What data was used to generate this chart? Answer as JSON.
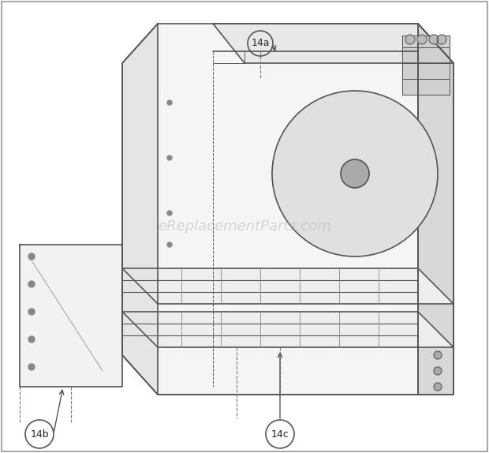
{
  "bg_color": "#ffffff",
  "border_color": "#cccccc",
  "line_color": "#555555",
  "label_14a": "14a",
  "label_14b": "14b",
  "label_14c": "14c",
  "watermark": "eReplacementParts.com",
  "watermark_color": "#bbbbbb",
  "watermark_fontsize": 13,
  "fig_width": 6.2,
  "fig_height": 5.74,
  "dpi": 100
}
